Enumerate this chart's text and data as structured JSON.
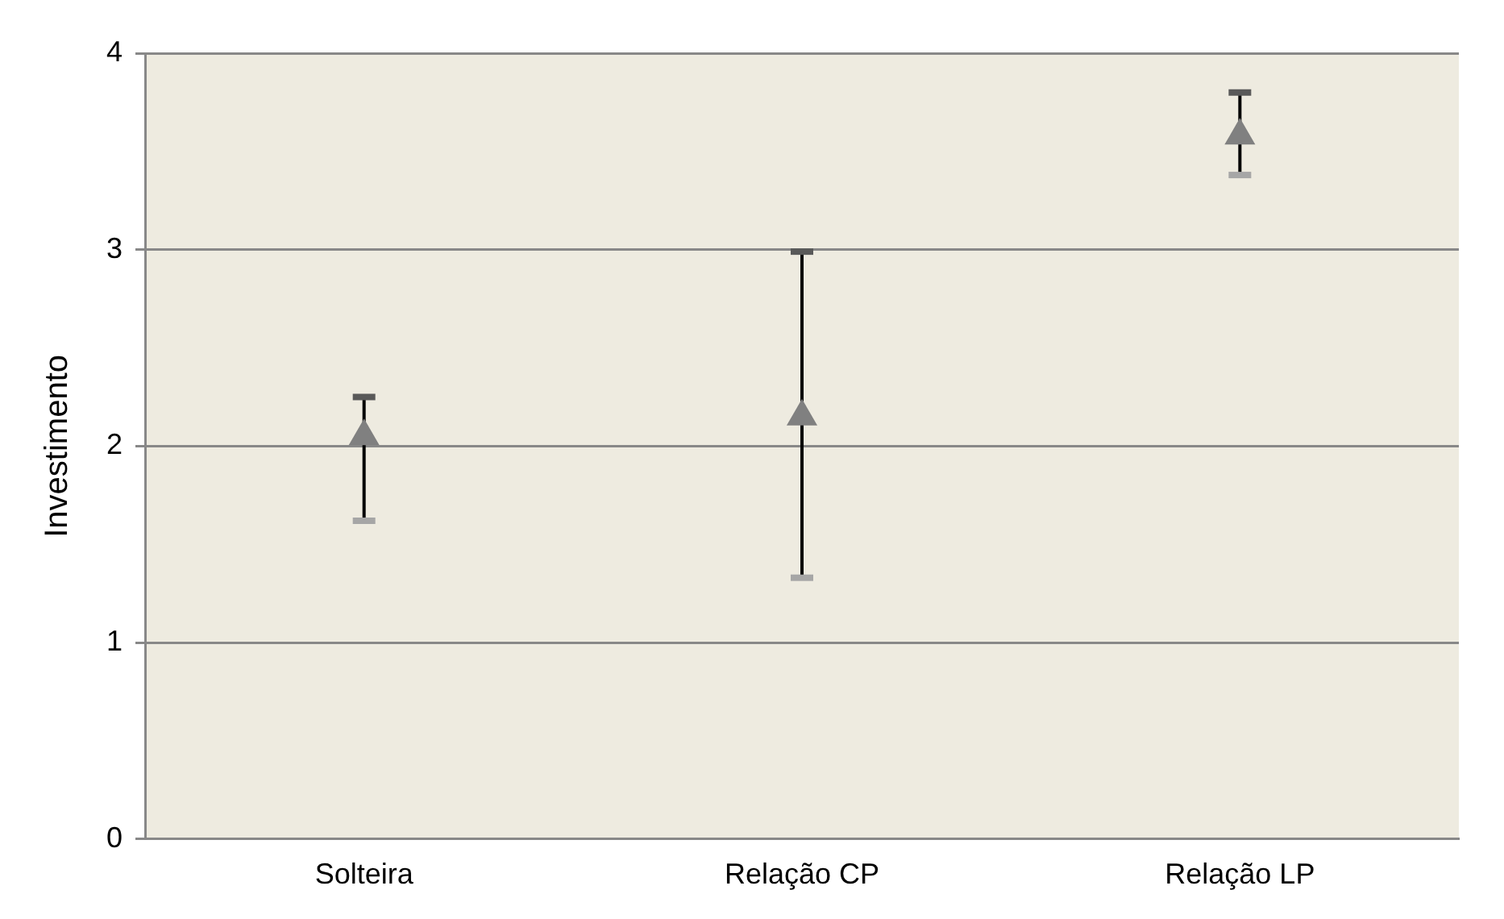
{
  "chart_data": {
    "type": "scatter",
    "ylabel": "Investimento",
    "categories": [
      "Solteira",
      "Relação CP",
      "Relação LP"
    ],
    "values": [
      2.05,
      2.15,
      3.58
    ],
    "errors": [
      [
        1.62,
        2.25
      ],
      [
        1.33,
        2.99
      ],
      [
        3.38,
        3.8
      ]
    ],
    "color": "#808080",
    "marker": "triangle",
    "ylim": [
      0,
      4
    ],
    "yticks": [
      0,
      1,
      2,
      3,
      4
    ],
    "grid": "y"
  }
}
